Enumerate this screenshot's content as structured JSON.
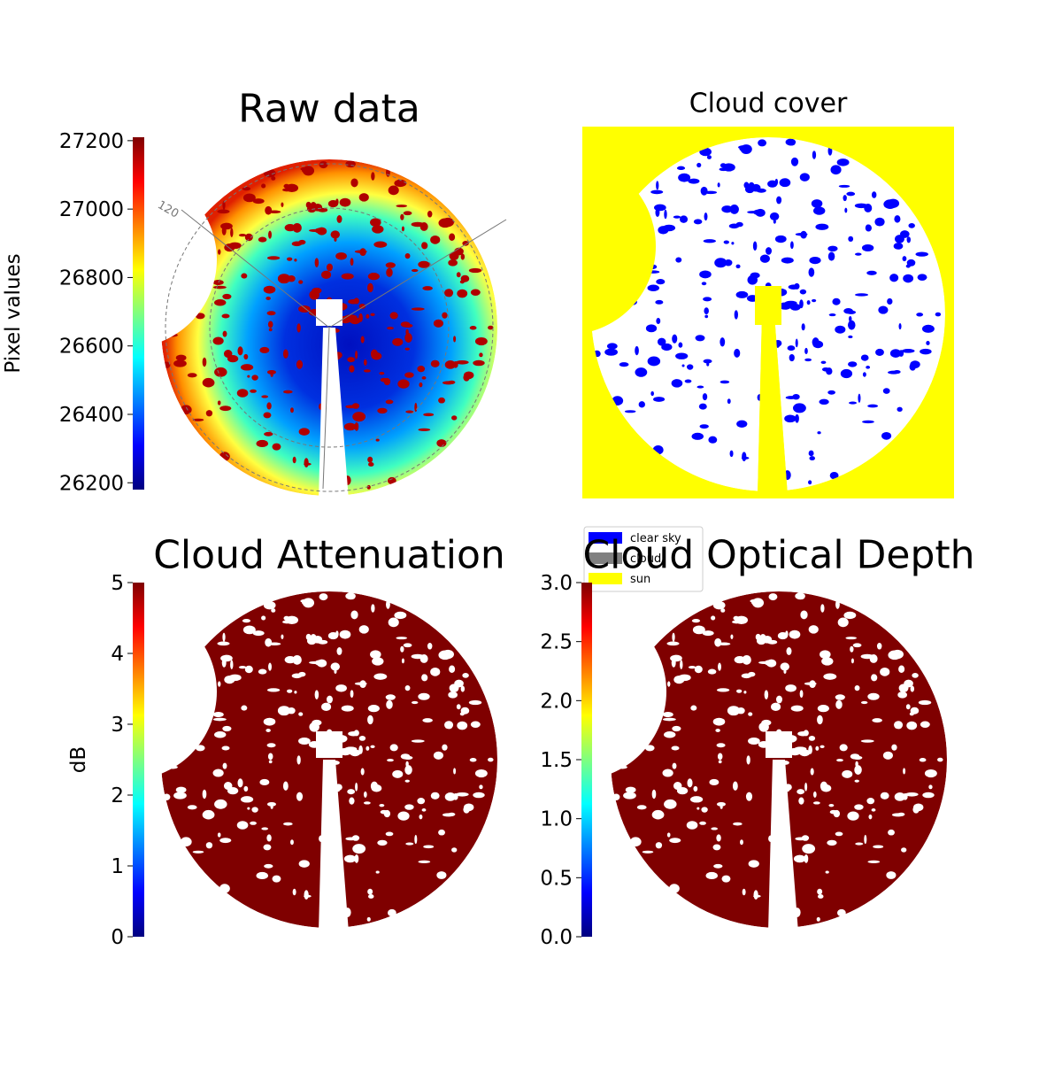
{
  "chart_data": [
    {
      "type": "image",
      "title": "Raw data",
      "colormap": "jet",
      "colorbar": {
        "label": "Pixel values",
        "lim": [
          26180,
          27210
        ],
        "ticks": [
          26200,
          26400,
          26600,
          26800,
          27000,
          27200
        ]
      },
      "annotations": [
        "120"
      ]
    },
    {
      "type": "image",
      "title": "Cloud cover",
      "legend": [
        {
          "name": "clear sky",
          "color": "#0000ff"
        },
        {
          "name": "cloud",
          "color": "#808080"
        },
        {
          "name": "sun",
          "color": "#ffff00"
        }
      ]
    },
    {
      "type": "image",
      "title": "Cloud Attenuation",
      "colormap": "jet",
      "colorbar": {
        "label": "dB",
        "lim": [
          0,
          5
        ],
        "ticks": [
          0,
          1,
          2,
          3,
          4,
          5
        ]
      }
    },
    {
      "type": "image",
      "title": "Cloud Optical Depth",
      "colormap": "jet",
      "colorbar": {
        "lim": [
          0,
          3
        ],
        "ticks": [
          {
            "value": 0,
            "label": "0.0"
          },
          {
            "value": 0.5,
            "label": "0.5"
          },
          {
            "value": 1,
            "label": "1.0"
          },
          {
            "value": 1.5,
            "label": "1.5"
          },
          {
            "value": 2,
            "label": "2.0"
          },
          {
            "value": 2.5,
            "label": "2.5"
          },
          {
            "value": 3,
            "label": "3.0"
          }
        ]
      }
    }
  ]
}
